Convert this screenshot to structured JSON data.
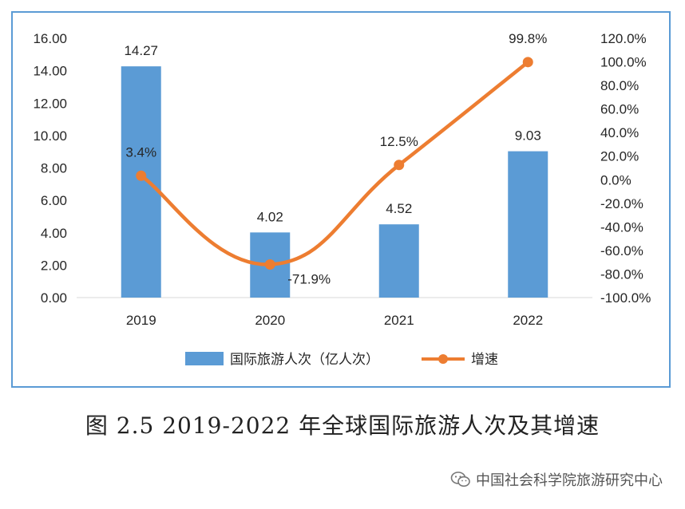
{
  "chart_data": {
    "type": "bar+line",
    "categories": [
      "2019",
      "2020",
      "2021",
      "2022"
    ],
    "series": [
      {
        "name": "国际旅游人次（亿人次）",
        "type": "bar",
        "axis": "left",
        "values": [
          14.27,
          4.02,
          4.52,
          9.03
        ],
        "labels": [
          "14.27",
          "4.02",
          "4.52",
          "9.03"
        ],
        "color": "#5b9bd5"
      },
      {
        "name": "增速",
        "type": "line",
        "axis": "right",
        "values": [
          3.4,
          -71.9,
          12.5,
          99.8
        ],
        "labels": [
          "3.4%",
          "-71.9%",
          "12.5%",
          "99.8%"
        ],
        "color": "#ed7d31"
      }
    ],
    "left_axis": {
      "ylim": [
        0,
        16
      ],
      "ticks": [
        "0.00",
        "2.00",
        "4.00",
        "6.00",
        "8.00",
        "10.00",
        "12.00",
        "14.00",
        "16.00"
      ]
    },
    "right_axis": {
      "ylim": [
        -100,
        120
      ],
      "ticks": [
        "-100.0%",
        "-80.0%",
        "-60.0%",
        "-40.0%",
        "-20.0%",
        "0.0%",
        "20.0%",
        "40.0%",
        "60.0%",
        "80.0%",
        "100.0%",
        "120.0%"
      ]
    },
    "legend_position": "bottom",
    "grid": false
  },
  "caption": "图 2.5 2019-2022 年全球国际旅游人次及其增速",
  "watermark": "中国社会科学院旅游研究中心"
}
